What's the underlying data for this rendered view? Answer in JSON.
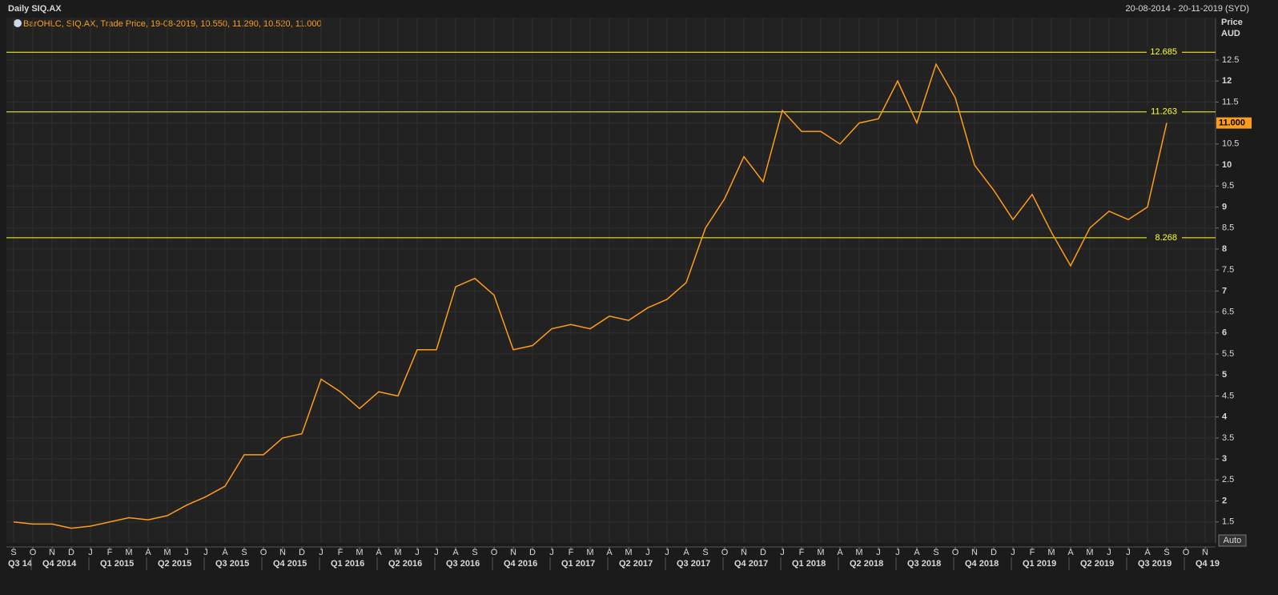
{
  "chart_data": {
    "type": "line",
    "title": "Daily SIQ.AX",
    "date_range": "20-08-2014 - 20-11-2019 (SYD)",
    "y_label": "Price",
    "y_unit": "AUD",
    "scale_button": "Auto",
    "categories": [
      "S",
      "O",
      "N",
      "D",
      "J",
      "F",
      "M",
      "A",
      "M",
      "J",
      "J",
      "A",
      "S",
      "O",
      "N",
      "D",
      "J",
      "F",
      "M",
      "A",
      "M",
      "J",
      "J",
      "A",
      "S",
      "O",
      "N",
      "D",
      "J",
      "F",
      "M",
      "A",
      "M",
      "J",
      "J",
      "A",
      "S",
      "O",
      "N",
      "D",
      "J",
      "F",
      "M",
      "A",
      "M",
      "J",
      "J",
      "A",
      "S",
      "O",
      "N",
      "D",
      "J",
      "F",
      "M",
      "A",
      "M",
      "J",
      "J",
      "A",
      "S",
      "O",
      "N"
    ],
    "quarters": [
      "Q3 14",
      "Q4 2014",
      "Q1 2015",
      "Q2 2015",
      "Q3 2015",
      "Q4 2015",
      "Q1 2016",
      "Q2 2016",
      "Q3 2016",
      "Q4 2016",
      "Q1 2017",
      "Q2 2017",
      "Q3 2017",
      "Q4 2017",
      "Q1 2018",
      "Q2 2018",
      "Q3 2018",
      "Q4 2018",
      "Q1 2019",
      "Q2 2019",
      "Q3 2019",
      "Q4 19"
    ],
    "series": [
      {
        "name": "BarOHLC, SIQ.AX, Trade Price, 19-08-2019, 10.550, 11.290, 10.520, 11.000",
        "color": "#ff9c1a",
        "values": [
          1.5,
          1.45,
          1.45,
          1.35,
          1.4,
          1.5,
          1.6,
          1.55,
          1.65,
          1.9,
          2.1,
          2.35,
          3.1,
          3.1,
          3.5,
          3.6,
          4.9,
          4.6,
          4.2,
          4.6,
          4.5,
          5.6,
          5.6,
          7.1,
          7.3,
          6.9,
          5.6,
          5.7,
          6.1,
          6.2,
          6.1,
          6.4,
          6.3,
          6.6,
          6.8,
          7.2,
          8.5,
          9.2,
          10.2,
          9.6,
          11.3,
          10.8,
          10.8,
          10.5,
          11.0,
          11.1,
          12.0,
          11.0,
          12.4,
          11.6,
          10.0,
          9.4,
          8.7,
          9.3,
          8.4,
          7.6,
          8.5,
          8.9,
          8.7,
          9.0,
          11.0,
          null,
          null
        ]
      }
    ],
    "reference_lines": [
      12.685,
      11.263,
      8.268
    ],
    "reference_color": "#ffff33",
    "last_price": {
      "value": 11,
      "label": "11.000"
    },
    "ylim": [
      1.0,
      13.5
    ],
    "yticks": [
      1.5,
      2,
      2.5,
      3,
      3.5,
      4,
      4.5,
      5,
      5.5,
      6,
      6.5,
      7,
      7.5,
      8,
      8.5,
      9,
      9.5,
      10,
      10.5,
      11,
      11.5,
      12,
      12.5
    ],
    "grid": true
  }
}
